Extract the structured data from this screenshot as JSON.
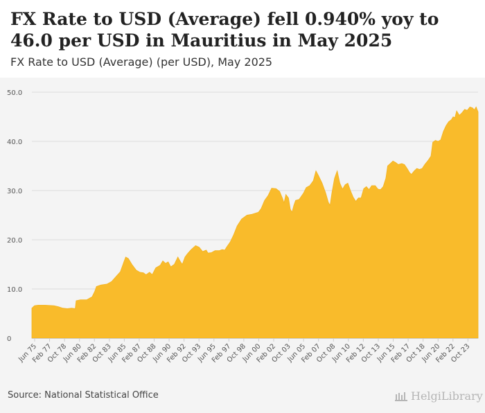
{
  "header": {
    "title": "FX Rate to USD (Average) fell 0.940% yoy to 46.0 per USD in Mauritius in May 2025",
    "subtitle": "FX Rate to USD (Average) (per USD), May 2025"
  },
  "footer": {
    "source": "Source: National Statistical Office",
    "brand": "HelgiLibrary"
  },
  "colors": {
    "area": "#f9bb2b",
    "area_stroke": "#f3b321",
    "grid": "#dddddd",
    "axis": "#cccccc",
    "label": "#555555"
  },
  "chart_data": {
    "type": "area",
    "title": "FX Rate to USD (Average) (per USD), May 2025",
    "xlabel": "",
    "ylabel": "",
    "ylim": [
      0,
      50
    ],
    "yticks": [
      "0",
      "10.0",
      "20.0",
      "30.0",
      "40.0",
      "50.0"
    ],
    "y_values": [
      0,
      10,
      20,
      30,
      40,
      50
    ],
    "grid": true,
    "x_start": "Jan 1975",
    "x_end": "May 2025",
    "xticks": [
      "Jun 75",
      "Feb 77",
      "Oct 78",
      "Jun 80",
      "Feb 82",
      "Oct 83",
      "Jun 85",
      "Feb 87",
      "Oct 88",
      "Jun 90",
      "Feb 92",
      "Oct 93",
      "Jun 95",
      "Feb 97",
      "Oct 98",
      "Jun 00",
      "Feb 02",
      "Oct 03",
      "Jun 05",
      "Feb 07",
      "Oct 08",
      "Jun 10",
      "Feb 12",
      "Oct 13",
      "Jun 15",
      "Feb 17",
      "Oct 18",
      "Jun 20",
      "Feb 22",
      "Oct 23"
    ],
    "series": [
      {
        "name": "FX Rate to USD (Average)",
        "unit": "per USD",
        "points": [
          [
            1975.0,
            6.1
          ],
          [
            1975.3,
            6.6
          ],
          [
            1975.7,
            6.7
          ],
          [
            1976.5,
            6.7
          ],
          [
            1977.5,
            6.6
          ],
          [
            1978.0,
            6.4
          ],
          [
            1978.5,
            6.1
          ],
          [
            1979.0,
            6.0
          ],
          [
            1979.5,
            6.1
          ],
          [
            1979.9,
            6.0
          ],
          [
            1980.0,
            7.6
          ],
          [
            1980.5,
            7.8
          ],
          [
            1981.2,
            7.8
          ],
          [
            1981.8,
            8.4
          ],
          [
            1982.1,
            9.5
          ],
          [
            1982.3,
            10.5
          ],
          [
            1982.8,
            10.8
          ],
          [
            1983.5,
            11.0
          ],
          [
            1984.0,
            11.5
          ],
          [
            1984.5,
            12.5
          ],
          [
            1985.0,
            13.5
          ],
          [
            1985.4,
            15.5
          ],
          [
            1985.6,
            16.5
          ],
          [
            1985.9,
            16.2
          ],
          [
            1986.3,
            15.0
          ],
          [
            1986.8,
            13.8
          ],
          [
            1987.2,
            13.4
          ],
          [
            1987.6,
            13.3
          ],
          [
            1987.9,
            12.9
          ],
          [
            1988.3,
            13.4
          ],
          [
            1988.6,
            12.9
          ],
          [
            1989.0,
            14.3
          ],
          [
            1989.5,
            14.8
          ],
          [
            1989.8,
            15.7
          ],
          [
            1990.1,
            15.2
          ],
          [
            1990.4,
            15.5
          ],
          [
            1990.7,
            14.5
          ],
          [
            1991.1,
            15.0
          ],
          [
            1991.5,
            16.5
          ],
          [
            1991.8,
            15.5
          ],
          [
            1992.0,
            15.0
          ],
          [
            1992.3,
            16.5
          ],
          [
            1992.6,
            17.2
          ],
          [
            1993.0,
            18.0
          ],
          [
            1993.5,
            18.8
          ],
          [
            1993.9,
            18.5
          ],
          [
            1994.3,
            17.6
          ],
          [
            1994.7,
            17.9
          ],
          [
            1994.9,
            17.3
          ],
          [
            1995.3,
            17.4
          ],
          [
            1995.7,
            17.8
          ],
          [
            1996.2,
            17.8
          ],
          [
            1996.5,
            18.0
          ],
          [
            1996.8,
            17.9
          ],
          [
            1997.0,
            18.5
          ],
          [
            1997.4,
            19.5
          ],
          [
            1997.8,
            21.0
          ],
          [
            1998.2,
            22.8
          ],
          [
            1998.7,
            24.2
          ],
          [
            1999.3,
            25.0
          ],
          [
            1999.9,
            25.2
          ],
          [
            2000.6,
            25.6
          ],
          [
            2000.9,
            26.3
          ],
          [
            2001.3,
            28.0
          ],
          [
            2001.7,
            29.0
          ],
          [
            2002.1,
            30.5
          ],
          [
            2002.6,
            30.4
          ],
          [
            2003.0,
            29.8
          ],
          [
            2003.3,
            28.5
          ],
          [
            2003.5,
            27.5
          ],
          [
            2003.7,
            29.2
          ],
          [
            2004.0,
            28.5
          ],
          [
            2004.2,
            26.2
          ],
          [
            2004.4,
            25.6
          ],
          [
            2004.6,
            27.0
          ],
          [
            2004.8,
            28.0
          ],
          [
            2005.2,
            28.2
          ],
          [
            2005.7,
            29.5
          ],
          [
            2006.0,
            30.6
          ],
          [
            2006.4,
            31.0
          ],
          [
            2006.8,
            32.0
          ],
          [
            2007.1,
            34.0
          ],
          [
            2007.4,
            33.0
          ],
          [
            2007.8,
            31.5
          ],
          [
            2008.2,
            29.5
          ],
          [
            2008.5,
            27.6
          ],
          [
            2008.7,
            27.0
          ],
          [
            2008.9,
            29.5
          ],
          [
            2009.2,
            32.5
          ],
          [
            2009.5,
            34.0
          ],
          [
            2009.8,
            31.5
          ],
          [
            2010.1,
            30.3
          ],
          [
            2010.4,
            31.2
          ],
          [
            2010.7,
            31.5
          ],
          [
            2011.0,
            30.0
          ],
          [
            2011.3,
            28.7
          ],
          [
            2011.6,
            27.8
          ],
          [
            2011.9,
            28.5
          ],
          [
            2012.2,
            28.5
          ],
          [
            2012.5,
            30.4
          ],
          [
            2012.8,
            30.8
          ],
          [
            2013.1,
            30.2
          ],
          [
            2013.4,
            31.0
          ],
          [
            2013.8,
            31.0
          ],
          [
            2014.1,
            30.3
          ],
          [
            2014.4,
            30.2
          ],
          [
            2014.7,
            30.8
          ],
          [
            2015.0,
            32.5
          ],
          [
            2015.2,
            35.0
          ],
          [
            2015.5,
            35.5
          ],
          [
            2015.8,
            36.0
          ],
          [
            2016.1,
            35.7
          ],
          [
            2016.4,
            35.3
          ],
          [
            2016.8,
            35.5
          ],
          [
            2017.1,
            35.3
          ],
          [
            2017.4,
            34.5
          ],
          [
            2017.7,
            33.6
          ],
          [
            2017.9,
            33.3
          ],
          [
            2018.2,
            34.0
          ],
          [
            2018.5,
            34.5
          ],
          [
            2018.8,
            34.3
          ],
          [
            2019.1,
            34.5
          ],
          [
            2019.4,
            35.3
          ],
          [
            2019.8,
            36.2
          ],
          [
            2020.1,
            37.0
          ],
          [
            2020.3,
            39.8
          ],
          [
            2020.6,
            40.2
          ],
          [
            2020.9,
            40.0
          ],
          [
            2021.2,
            40.3
          ],
          [
            2021.5,
            42.0
          ],
          [
            2021.8,
            43.2
          ],
          [
            2022.1,
            44.0
          ],
          [
            2022.4,
            44.4
          ],
          [
            2022.6,
            45.0
          ],
          [
            2022.8,
            44.8
          ],
          [
            2023.0,
            46.2
          ],
          [
            2023.3,
            45.3
          ],
          [
            2023.6,
            45.8
          ],
          [
            2023.9,
            46.5
          ],
          [
            2024.2,
            46.3
          ],
          [
            2024.5,
            47.0
          ],
          [
            2024.8,
            46.8
          ],
          [
            2025.0,
            46.4
          ],
          [
            2025.2,
            47.0
          ],
          [
            2025.42,
            46.0
          ]
        ]
      }
    ],
    "last_value": 46.0,
    "yoy_change_pct": -0.94
  }
}
